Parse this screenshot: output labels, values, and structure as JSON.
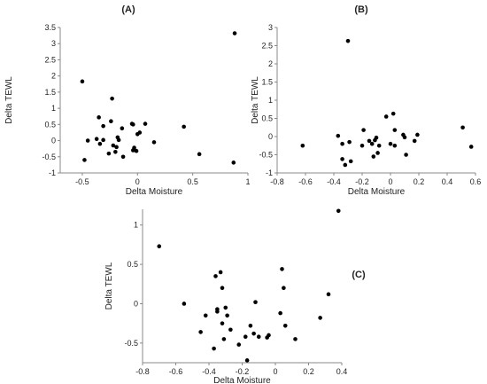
{
  "chart_data": [
    {
      "type": "scatter",
      "title": "(A)",
      "xlabel": "Delta Moisture",
      "ylabel": "Delta TEWL",
      "xlim": [
        -0.7,
        1.0
      ],
      "ylim": [
        -1.0,
        3.5
      ],
      "xticks": [
        -0.5,
        0,
        0.5,
        1
      ],
      "yticks": [
        -1,
        -0.5,
        0,
        0.5,
        1,
        1.5,
        2,
        2.5,
        3,
        3.5
      ],
      "grid": false,
      "points": [
        {
          "x": -0.5,
          "y": 1.83
        },
        {
          "x": -0.48,
          "y": -0.6
        },
        {
          "x": -0.45,
          "y": 0.0
        },
        {
          "x": -0.37,
          "y": 0.05
        },
        {
          "x": -0.35,
          "y": 0.72
        },
        {
          "x": -0.34,
          "y": -0.1
        },
        {
          "x": -0.31,
          "y": 0.45
        },
        {
          "x": -0.31,
          "y": 0.02
        },
        {
          "x": -0.26,
          "y": -0.4
        },
        {
          "x": -0.24,
          "y": 0.6
        },
        {
          "x": -0.23,
          "y": 1.3
        },
        {
          "x": -0.22,
          "y": -0.15
        },
        {
          "x": -0.2,
          "y": -0.35
        },
        {
          "x": -0.19,
          "y": -0.2
        },
        {
          "x": -0.18,
          "y": 0.1
        },
        {
          "x": -0.17,
          "y": 0.02
        },
        {
          "x": -0.14,
          "y": 0.38
        },
        {
          "x": -0.13,
          "y": -0.5
        },
        {
          "x": -0.05,
          "y": 0.52
        },
        {
          "x": -0.04,
          "y": 0.5
        },
        {
          "x": -0.04,
          "y": -0.3
        },
        {
          "x": -0.03,
          "y": -0.22
        },
        {
          "x": -0.01,
          "y": -0.32
        },
        {
          "x": 0.0,
          "y": 0.2
        },
        {
          "x": 0.02,
          "y": 0.25
        },
        {
          "x": 0.07,
          "y": 0.52
        },
        {
          "x": 0.15,
          "y": -0.05
        },
        {
          "x": 0.42,
          "y": 0.43
        },
        {
          "x": 0.56,
          "y": -0.42
        },
        {
          "x": 0.87,
          "y": -0.68
        },
        {
          "x": 0.88,
          "y": 3.32
        }
      ]
    },
    {
      "type": "scatter",
      "title": "(B)",
      "xlabel": "Delta Moisture",
      "ylabel": "Delta TEWL",
      "xlim": [
        -0.8,
        0.6
      ],
      "ylim": [
        -1.0,
        3.0
      ],
      "xticks": [
        -0.8,
        -0.6,
        -0.4,
        -0.2,
        0,
        0.2,
        0.4,
        0.6
      ],
      "yticks": [
        -1,
        -0.5,
        0,
        0.5,
        1,
        1.5,
        2,
        2.5,
        3
      ],
      "grid": false,
      "points": [
        {
          "x": -0.62,
          "y": -0.25
        },
        {
          "x": -0.37,
          "y": 0.02
        },
        {
          "x": -0.34,
          "y": -0.2
        },
        {
          "x": -0.34,
          "y": -0.62
        },
        {
          "x": -0.32,
          "y": -0.78
        },
        {
          "x": -0.3,
          "y": 2.63
        },
        {
          "x": -0.29,
          "y": -0.15
        },
        {
          "x": -0.28,
          "y": -0.68
        },
        {
          "x": -0.2,
          "y": -0.25
        },
        {
          "x": -0.19,
          "y": 0.18
        },
        {
          "x": -0.15,
          "y": -0.12
        },
        {
          "x": -0.13,
          "y": -0.2
        },
        {
          "x": -0.12,
          "y": -0.55
        },
        {
          "x": -0.11,
          "y": -0.1
        },
        {
          "x": -0.1,
          "y": -0.03
        },
        {
          "x": -0.09,
          "y": -0.45
        },
        {
          "x": -0.08,
          "y": -0.25
        },
        {
          "x": -0.03,
          "y": 0.55
        },
        {
          "x": 0.0,
          "y": -0.2
        },
        {
          "x": 0.02,
          "y": 0.63
        },
        {
          "x": 0.03,
          "y": -0.25
        },
        {
          "x": 0.03,
          "y": 0.18
        },
        {
          "x": 0.09,
          "y": 0.05
        },
        {
          "x": 0.1,
          "y": -0.02
        },
        {
          "x": 0.11,
          "y": -0.5
        },
        {
          "x": 0.17,
          "y": -0.12
        },
        {
          "x": 0.19,
          "y": 0.05
        },
        {
          "x": 0.51,
          "y": 0.25
        },
        {
          "x": 0.57,
          "y": -0.28
        }
      ]
    },
    {
      "type": "scatter",
      "title": "(C)",
      "xlabel": "Delta Moisture",
      "ylabel": "Delta TEWL",
      "xlim": [
        -0.8,
        0.4
      ],
      "ylim": [
        -0.75,
        1.2
      ],
      "xticks": [
        -0.8,
        -0.6,
        -0.4,
        -0.2,
        0,
        0.2,
        0.4
      ],
      "yticks": [
        -0.5,
        0,
        0.5,
        1
      ],
      "grid": false,
      "points": [
        {
          "x": -0.7,
          "y": 0.73
        },
        {
          "x": -0.55,
          "y": 0.0
        },
        {
          "x": -0.45,
          "y": -0.36
        },
        {
          "x": -0.42,
          "y": -0.15
        },
        {
          "x": -0.37,
          "y": -0.57
        },
        {
          "x": -0.36,
          "y": 0.35
        },
        {
          "x": -0.35,
          "y": -0.1
        },
        {
          "x": -0.35,
          "y": -0.07
        },
        {
          "x": -0.33,
          "y": 0.4
        },
        {
          "x": -0.32,
          "y": -0.25
        },
        {
          "x": -0.32,
          "y": 0.2
        },
        {
          "x": -0.31,
          "y": -0.45
        },
        {
          "x": -0.3,
          "y": -0.05
        },
        {
          "x": -0.29,
          "y": -0.15
        },
        {
          "x": -0.27,
          "y": -0.33
        },
        {
          "x": -0.22,
          "y": -0.52
        },
        {
          "x": -0.18,
          "y": -0.42
        },
        {
          "x": -0.17,
          "y": -0.72
        },
        {
          "x": -0.15,
          "y": -0.28
        },
        {
          "x": -0.13,
          "y": -0.38
        },
        {
          "x": -0.12,
          "y": 0.02
        },
        {
          "x": -0.1,
          "y": -0.42
        },
        {
          "x": -0.05,
          "y": -0.43
        },
        {
          "x": -0.04,
          "y": -0.4
        },
        {
          "x": 0.03,
          "y": -0.12
        },
        {
          "x": 0.04,
          "y": 0.44
        },
        {
          "x": 0.05,
          "y": 0.2
        },
        {
          "x": 0.06,
          "y": -0.28
        },
        {
          "x": 0.12,
          "y": -0.45
        },
        {
          "x": 0.27,
          "y": -0.18
        },
        {
          "x": 0.32,
          "y": 0.12
        },
        {
          "x": 0.38,
          "y": 1.18
        }
      ]
    }
  ]
}
